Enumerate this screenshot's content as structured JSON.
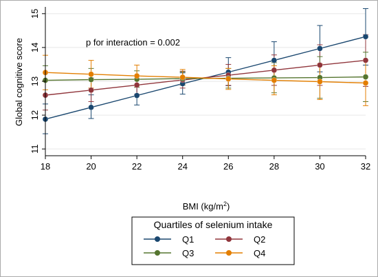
{
  "chart_data": {
    "type": "line",
    "annotation": "p for interaction = 0.002",
    "xlabel": "BMI (kg/m",
    "xlabel_superscript": "2",
    "xlabel_suffix": ")",
    "ylabel": "Global cognitive score",
    "x": [
      18,
      20,
      22,
      24,
      26,
      28,
      30,
      32
    ],
    "xticks": [
      18,
      20,
      22,
      24,
      26,
      28,
      30,
      32
    ],
    "yticks": [
      11,
      12,
      13,
      14,
      15
    ],
    "xlim": [
      18,
      32
    ],
    "ylim": [
      10.8,
      15.2
    ],
    "grid": "horizontal",
    "legend": {
      "title": "Quartiles of selenium intake",
      "placement": "bottom",
      "columns": 2
    },
    "series": [
      {
        "name": "Q1",
        "color": "#1a476f",
        "values": [
          11.88,
          12.23,
          12.58,
          12.93,
          13.27,
          13.62,
          13.97,
          14.32
        ],
        "ci_low": [
          11.45,
          11.9,
          12.3,
          12.62,
          12.87,
          13.1,
          13.28,
          13.48
        ],
        "ci_high": [
          12.33,
          12.6,
          12.88,
          13.25,
          13.7,
          14.17,
          14.65,
          15.15
        ]
      },
      {
        "name": "Q2",
        "color": "#90353b",
        "values": [
          12.59,
          12.74,
          12.89,
          13.04,
          13.18,
          13.33,
          13.48,
          13.62
        ],
        "ci_low": [
          12.15,
          12.4,
          12.62,
          12.8,
          12.88,
          12.88,
          12.88,
          12.85
        ],
        "ci_high": [
          13.02,
          13.1,
          13.18,
          13.3,
          13.5,
          13.78,
          14.08,
          14.38
        ]
      },
      {
        "name": "Q3",
        "color": "#55752f",
        "values": [
          13.03,
          13.05,
          13.06,
          13.08,
          13.09,
          13.1,
          13.11,
          13.13
        ],
        "ci_low": [
          12.6,
          12.72,
          12.82,
          12.88,
          12.8,
          12.66,
          12.5,
          12.4
        ],
        "ci_high": [
          13.46,
          13.38,
          13.31,
          13.28,
          13.38,
          13.55,
          13.73,
          13.86
        ]
      },
      {
        "name": "Q4",
        "color": "#e37e00",
        "values": [
          13.26,
          13.21,
          13.16,
          13.12,
          13.07,
          13.03,
          12.99,
          12.95
        ],
        "ci_low": [
          12.75,
          12.8,
          12.86,
          12.89,
          12.76,
          12.6,
          12.46,
          12.28
        ],
        "ci_high": [
          13.77,
          13.62,
          13.48,
          13.35,
          13.38,
          13.46,
          13.52,
          13.62
        ]
      }
    ]
  }
}
